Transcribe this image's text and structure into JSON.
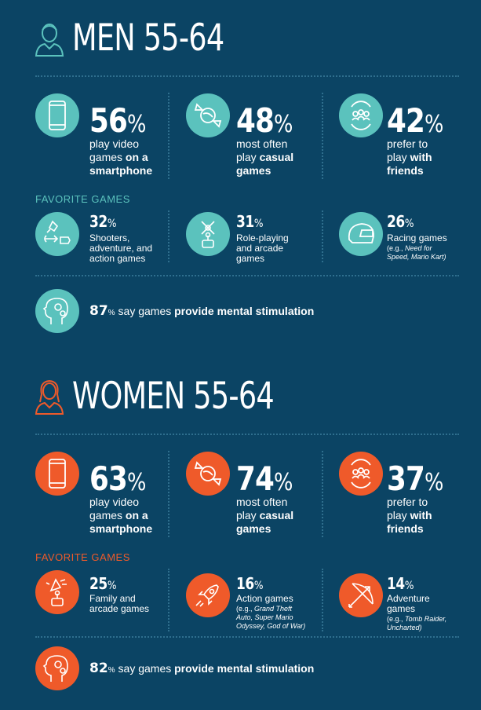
{
  "colors": {
    "background": "#0b4464",
    "men_accent": "#5bc2bd",
    "women_accent": "#ef5a2a"
  },
  "men": {
    "title": "MEN 55-64",
    "stats": [
      {
        "icon": "smartphone-icon",
        "value": "56",
        "unit": "%",
        "line1": "play video",
        "line2a": "games ",
        "line2b": "on a",
        "line3": "smartphone"
      },
      {
        "icon": "candy-icon",
        "value": "48",
        "unit": "%",
        "line1": "most often",
        "line2a": "play ",
        "line2b": "casual",
        "line3": "games"
      },
      {
        "icon": "friends-icon",
        "value": "42",
        "unit": "%",
        "line1": "prefer to",
        "line2a": "play ",
        "line2b": "with",
        "line3": "friends"
      }
    ],
    "favorite_label": "FAVORITE GAMES",
    "favorites": [
      {
        "icon": "rocket-bow-icon",
        "value": "32",
        "unit": "%",
        "lines": [
          "Shooters,",
          "adventure, and",
          "action games"
        ]
      },
      {
        "icon": "joystick-icon",
        "value": "31",
        "unit": "%",
        "lines": [
          "Role-playing",
          "and arcade",
          "games"
        ]
      },
      {
        "icon": "helmet-icon",
        "value": "26",
        "unit": "%",
        "lines": [
          "Racing games"
        ],
        "examples_prefix": "(e.g., ",
        "examples": [
          "Need for",
          "Speed, Mario Kart)"
        ]
      }
    ],
    "stimulation": {
      "value": "87",
      "unit": "%",
      "text_a": " say games ",
      "text_b": "provide mental stimulation"
    }
  },
  "women": {
    "title": "WOMEN 55-64",
    "stats": [
      {
        "icon": "smartphone-icon",
        "value": "63",
        "unit": "%",
        "line1": "play video",
        "line2a": "games ",
        "line2b": "on a",
        "line3": "smartphone"
      },
      {
        "icon": "candy-icon",
        "value": "74",
        "unit": "%",
        "line1": "most often",
        "line2a": "play ",
        "line2b": "casual",
        "line3": "games"
      },
      {
        "icon": "friends-icon",
        "value": "37",
        "unit": "%",
        "line1": "prefer to",
        "line2a": "play ",
        "line2b": "with",
        "line3": "friends"
      }
    ],
    "favorite_label": "FAVORITE GAMES",
    "favorites": [
      {
        "icon": "party-joystick-icon",
        "value": "25",
        "unit": "%",
        "lines": [
          "Family and",
          "arcade games"
        ]
      },
      {
        "icon": "rocket-icon",
        "value": "16",
        "unit": "%",
        "lines": [
          "Action games"
        ],
        "examples_prefix": "(e.g., ",
        "examples": [
          "Grand Theft",
          "Auto, Super Mario",
          "Odyssey, God of War)"
        ]
      },
      {
        "icon": "bow-arrow-icon",
        "value": "14",
        "unit": "%",
        "lines": [
          "Adventure",
          "games"
        ],
        "examples_prefix": "(e.g., ",
        "examples": [
          "Tomb Raider,",
          "Uncharted)"
        ]
      }
    ],
    "stimulation": {
      "value": "82",
      "unit": "%",
      "text_a": " say games ",
      "text_b": "provide mental stimulation"
    }
  }
}
